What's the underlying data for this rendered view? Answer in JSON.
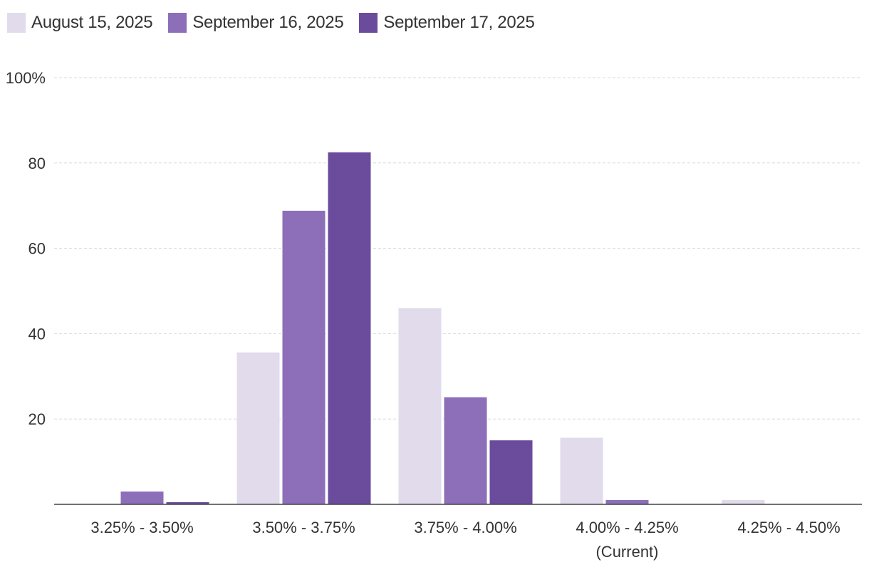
{
  "chart_data": {
    "type": "bar",
    "categories": [
      "3.25% - 3.50%",
      "3.50% - 3.75%",
      "3.75% - 4.00%",
      "4.00% - 4.25%",
      "4.25% - 4.50%"
    ],
    "category_sublabels": [
      "",
      "",
      "",
      "(Current)",
      ""
    ],
    "series": [
      {
        "name": "August 15, 2025",
        "color": "#e1dbec",
        "values": [
          0,
          35.6,
          46.0,
          15.6,
          1.0
        ]
      },
      {
        "name": "September 16, 2025",
        "color": "#8c6fb8",
        "values": [
          3.0,
          68.8,
          25.1,
          1.0,
          0
        ]
      },
      {
        "name": "September 17, 2025",
        "color": "#6a4b9c",
        "values": [
          0.5,
          82.5,
          15.0,
          0,
          0
        ]
      }
    ],
    "ylim": [
      0,
      100
    ],
    "yticks": [
      20,
      40,
      60,
      80,
      100
    ],
    "ytick_labels": [
      "20",
      "40",
      "60",
      "80",
      "100%"
    ],
    "grid": true,
    "legend_position": "top-left",
    "title": "",
    "xlabel": "",
    "ylabel": ""
  }
}
